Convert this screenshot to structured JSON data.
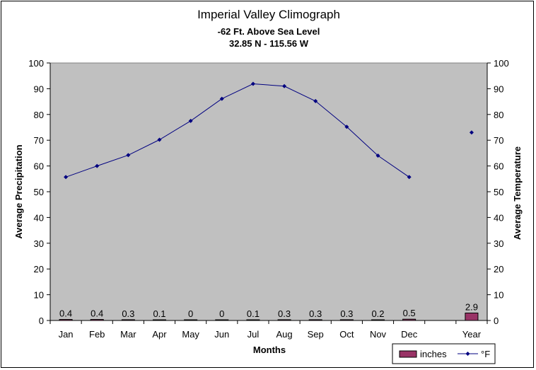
{
  "chart_data": {
    "type": "bar",
    "title": "Imperial Valley Climograph",
    "subtitle_lines": [
      "-62 Ft. Above Sea Level",
      "32.85 N - 115.56 W"
    ],
    "xlabel": "Months",
    "ylabel_left": "Average Precipitation",
    "ylabel_right": "Average Temperature",
    "ylim_left": [
      0,
      100
    ],
    "ylim_right": [
      0,
      100
    ],
    "y_ticks": [
      "0",
      "10",
      "20",
      "30",
      "40",
      "50",
      "60",
      "70",
      "80",
      "90",
      "100"
    ],
    "categories": [
      "Jan",
      "Feb",
      "Mar",
      "Apr",
      "May",
      "Jun",
      "Jul",
      "Aug",
      "Sep",
      "Oct",
      "Nov",
      "Dec",
      "",
      "Year"
    ],
    "series": [
      {
        "name": "inches",
        "type": "bar",
        "axis": "left",
        "color": "#993366",
        "values": [
          0.4,
          0.4,
          0.3,
          0.1,
          0,
          0,
          0.1,
          0.3,
          0.3,
          0.3,
          0.2,
          0.5,
          null,
          2.9
        ],
        "data_labels": [
          "0.4",
          "0.4",
          "0.3",
          "0.1",
          "0",
          "0",
          "0.1",
          "0.3",
          "0.3",
          "0.3",
          "0.2",
          "0.5",
          "",
          "2.9"
        ]
      },
      {
        "name": "°F",
        "type": "line",
        "axis": "right",
        "color": "#000080",
        "values": [
          55.7,
          60.0,
          64.2,
          70.2,
          77.5,
          86.1,
          91.9,
          91.0,
          85.2,
          75.2,
          64.0,
          55.7,
          null,
          73.0
        ]
      }
    ],
    "plot_background": "#c0c0c0",
    "grid": false,
    "legend_position": "bottom-right"
  }
}
